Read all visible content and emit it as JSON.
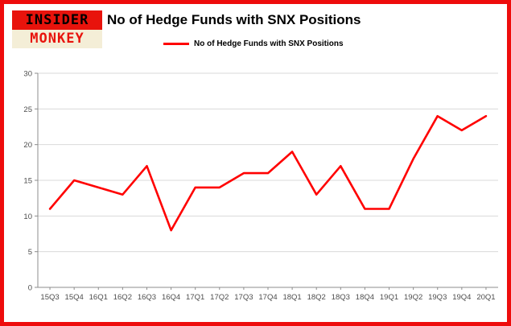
{
  "brand": {
    "logo_top": "INSIDER",
    "logo_bottom": "MONKEY"
  },
  "header": {
    "title": "No of Hedge Funds with SNX Positions"
  },
  "legend": {
    "label": "No of Hedge Funds with SNX Positions",
    "color": "#ff0000"
  },
  "chart_data": {
    "type": "line",
    "title": "No of Hedge Funds with SNX Positions",
    "categories": [
      "15Q3",
      "15Q4",
      "16Q1",
      "16Q2",
      "16Q3",
      "16Q4",
      "17Q1",
      "17Q2",
      "17Q3",
      "17Q4",
      "18Q1",
      "18Q2",
      "18Q3",
      "18Q4",
      "19Q1",
      "19Q2",
      "19Q3",
      "19Q4",
      "20Q1"
    ],
    "values": [
      11,
      15,
      14,
      13,
      17,
      8,
      14,
      14,
      16,
      16,
      19,
      13,
      17,
      11,
      11,
      18,
      24,
      22,
      24
    ],
    "series_name": "No of Hedge Funds with SNX Positions",
    "line_color": "#ff0000",
    "xlabel": "",
    "ylabel": "",
    "ylim": [
      0,
      30
    ],
    "yticks": [
      0,
      5,
      10,
      15,
      20,
      25,
      30
    ],
    "grid": true,
    "legend_position": "top-left"
  }
}
